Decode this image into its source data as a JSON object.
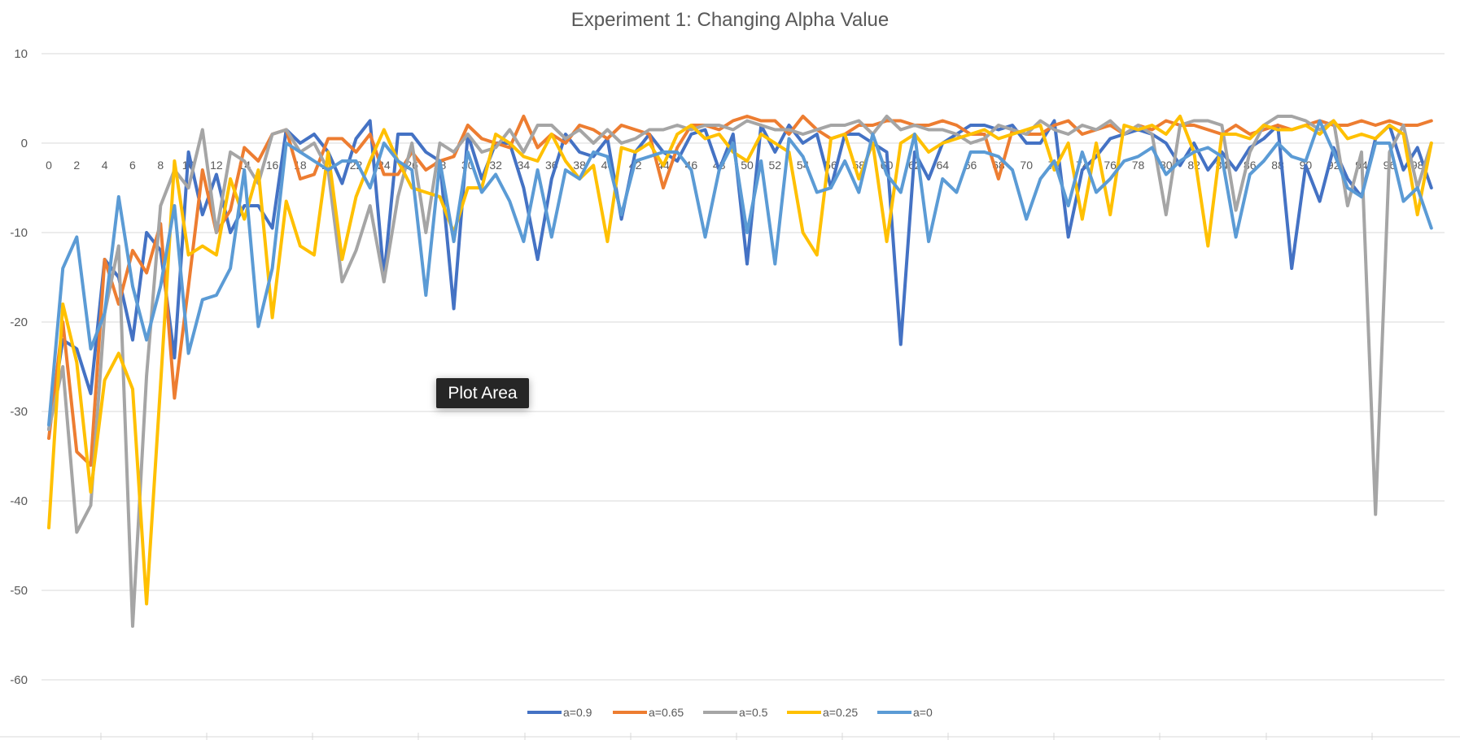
{
  "chart_data": {
    "type": "line",
    "title": "Experiment 1: Changing Alpha Value",
    "xlabel": "",
    "ylabel": "",
    "ylim": [
      -60,
      10
    ],
    "yticks": [
      10,
      0,
      -10,
      -20,
      -30,
      -40,
      -50,
      -60
    ],
    "x": [
      0,
      1,
      2,
      3,
      4,
      5,
      6,
      7,
      8,
      9,
      10,
      11,
      12,
      13,
      14,
      15,
      16,
      17,
      18,
      19,
      20,
      21,
      22,
      23,
      24,
      25,
      26,
      27,
      28,
      29,
      30,
      31,
      32,
      33,
      34,
      35,
      36,
      37,
      38,
      39,
      40,
      41,
      42,
      43,
      44,
      45,
      46,
      47,
      48,
      49,
      50,
      51,
      52,
      53,
      54,
      55,
      56,
      57,
      58,
      59,
      60,
      61,
      62,
      63,
      64,
      65,
      66,
      67,
      68,
      69,
      70,
      71,
      72,
      73,
      74,
      75,
      76,
      77,
      78,
      79,
      80,
      81,
      82,
      83,
      84,
      85,
      86,
      87,
      88,
      89,
      90,
      91,
      92,
      93,
      94,
      95,
      96,
      97,
      98,
      99
    ],
    "xtick_labels": [
      "0",
      "2",
      "4",
      "6",
      "8",
      "10",
      "12",
      "14",
      "16",
      "18",
      "20",
      "22",
      "24",
      "26",
      "28",
      "30",
      "32",
      "34",
      "36",
      "38",
      "40",
      "42",
      "44",
      "46",
      "48",
      "50",
      "52",
      "54",
      "56",
      "58",
      "60",
      "62",
      "64",
      "66",
      "68",
      "70",
      "72",
      "74",
      "76",
      "78",
      "80",
      "82",
      "84",
      "86",
      "88",
      "90",
      "92",
      "94",
      "96",
      "98"
    ],
    "legend_position": "bottom",
    "grid": true,
    "series": [
      {
        "name": "a=0.9",
        "color": "#4472C4",
        "values": [
          -32,
          -22,
          -23,
          -28,
          -13,
          -15,
          -22,
          -10,
          -12,
          -24,
          -1,
          -8,
          -3.5,
          -10,
          -7,
          -7,
          -9.5,
          1.5,
          0,
          1,
          -1,
          -4.5,
          0.5,
          2.5,
          -15,
          1,
          1,
          -1,
          -2,
          -18.5,
          1,
          -4,
          0,
          0,
          -5,
          -13,
          -4,
          1,
          -1,
          -1.5,
          0.5,
          -8.5,
          -1,
          1,
          -1,
          -2,
          1,
          1.5,
          -3,
          1,
          -13.5,
          2,
          -1,
          2,
          0,
          1,
          -5,
          1,
          1,
          0,
          -1,
          -22.5,
          -1,
          -4,
          0,
          1,
          2,
          2,
          1.5,
          2,
          0,
          0,
          2.5,
          -10.5,
          -3,
          -1.5,
          0.5,
          1,
          1.5,
          1,
          0,
          -2.5,
          0,
          -3,
          -1,
          -3,
          -0.5,
          0.5,
          2,
          -14,
          -2.5,
          -6.5,
          -0.5,
          -4,
          -6,
          0.5,
          2,
          -3,
          -0.5,
          -5
        ]
      },
      {
        "name": "a=0.65",
        "color": "#ED7D31",
        "values": [
          -33,
          -20,
          -34.5,
          -36,
          -13,
          -18,
          -12,
          -14.5,
          -9,
          -28.5,
          -16,
          -3,
          -10,
          -7.5,
          -0.5,
          -2,
          1,
          1.5,
          -4,
          -3.5,
          0.5,
          0.5,
          -1,
          1,
          -3.5,
          -3.5,
          -1,
          -3,
          -2,
          -1.5,
          2,
          0.5,
          0,
          -0.5,
          3,
          -0.5,
          1,
          0,
          2,
          1.5,
          0.5,
          2,
          1.5,
          1,
          -5,
          -0.5,
          2,
          2,
          1.5,
          2.5,
          3,
          2.5,
          2.5,
          1,
          3,
          1.5,
          0.5,
          1,
          2,
          2,
          2.5,
          2.5,
          2,
          2,
          2.5,
          2,
          1,
          1,
          -4,
          1.5,
          1,
          1,
          2,
          2.5,
          1,
          1.5,
          2,
          1,
          2,
          1.5,
          2.5,
          2,
          2,
          1.5,
          1,
          2,
          1,
          1.5,
          2,
          1.5,
          2,
          2.5,
          2,
          2,
          2.5,
          2,
          2.5,
          2,
          2,
          2.5
        ]
      },
      {
        "name": "a=0.5",
        "color": "#A5A5A5",
        "values": [
          -32,
          -25,
          -43.5,
          -40.5,
          -19,
          -11.5,
          -54,
          -26,
          -7,
          -3,
          -5,
          1.5,
          -10,
          -1,
          -2,
          -4.5,
          1,
          1.5,
          -1,
          0,
          -3,
          -15.5,
          -12,
          -7,
          -15.5,
          -6,
          0,
          -10,
          0,
          -1,
          1,
          -1,
          -0.5,
          1.5,
          -1,
          2,
          2,
          0.5,
          1.5,
          0,
          1.5,
          0,
          0.5,
          1.5,
          1.5,
          2,
          1.5,
          2,
          2,
          1.5,
          2.5,
          2,
          1.5,
          1.5,
          1,
          1.5,
          2,
          2,
          2.5,
          1,
          3,
          1.5,
          2,
          1.5,
          1.5,
          1,
          0,
          0.5,
          2,
          1.5,
          1,
          2.5,
          1.5,
          1,
          2,
          1.5,
          2.5,
          1,
          2,
          1,
          -8,
          2,
          2.5,
          2.5,
          2,
          -7.5,
          -1,
          2,
          3,
          3,
          2.5,
          1.5,
          2.5,
          -7,
          -1,
          -41.5,
          -1,
          2,
          -5,
          0
        ]
      },
      {
        "name": "a=0.25",
        "color": "#FFC000",
        "values": [
          -43,
          -18,
          -24.5,
          -39,
          -26.5,
          -23.5,
          -27.5,
          -51.5,
          -27,
          -2,
          -12.5,
          -11.5,
          -12.5,
          -4,
          -8.5,
          -3,
          -19.5,
          -6.5,
          -11.5,
          -12.5,
          -1,
          -13,
          -6,
          -2,
          1.5,
          -2,
          -5,
          -5.5,
          -6,
          -10,
          -5,
          -5,
          1,
          0,
          -1.5,
          -2,
          1,
          -2,
          -4,
          -2.5,
          -11,
          -0.5,
          -1,
          0,
          -2.5,
          1,
          2,
          0.5,
          1,
          -1,
          -2,
          1,
          0,
          -1,
          -10,
          -12.5,
          0.5,
          1,
          -4,
          0,
          -11,
          0,
          1,
          -1,
          0,
          0.5,
          1,
          1.5,
          0.5,
          1,
          1.5,
          2,
          -3,
          0,
          -8.5,
          0,
          -8,
          2,
          1.5,
          2,
          1,
          3,
          -1,
          -11.5,
          1,
          1,
          0.5,
          2,
          1.5,
          1.5,
          2,
          1,
          2.5,
          0.5,
          1,
          0.5,
          2,
          1,
          -8,
          0
        ]
      },
      {
        "name": "a=0",
        "color": "#5B9BD5",
        "values": [
          -31.5,
          -14,
          -10.5,
          -23,
          -19,
          -6,
          -16,
          -22,
          -16,
          -7,
          -23.5,
          -17.5,
          -17,
          -14,
          -3,
          -20.5,
          -14,
          0,
          -1,
          -2,
          -3,
          -2,
          -2,
          -5,
          0,
          -2,
          -3,
          -17,
          -2,
          -11,
          -1,
          -5.5,
          -3.5,
          -6.5,
          -11,
          -3,
          -10.5,
          -3,
          -4,
          -1,
          -1.5,
          -8,
          -2,
          -1.5,
          -1,
          -1,
          -3,
          -10.5,
          -3,
          0,
          -10,
          -2,
          -13.5,
          0.5,
          -1.5,
          -5.5,
          -5,
          -2,
          -5.5,
          1,
          -3.5,
          -5.5,
          1,
          -11,
          -4,
          -5.5,
          -1,
          -1,
          -1.5,
          -3,
          -8.5,
          -4,
          -2,
          -7,
          -1,
          -5.5,
          -4,
          -2,
          -1.5,
          -0.5,
          -3.5,
          -2,
          -1,
          -0.5,
          -1.5,
          -10.5,
          -3.5,
          -2,
          0,
          -1.5,
          -2,
          2.5,
          -1,
          -5,
          -6,
          0,
          0,
          -6.5,
          -5,
          -9.5
        ]
      }
    ]
  },
  "tooltip": {
    "text": "Plot Area"
  }
}
